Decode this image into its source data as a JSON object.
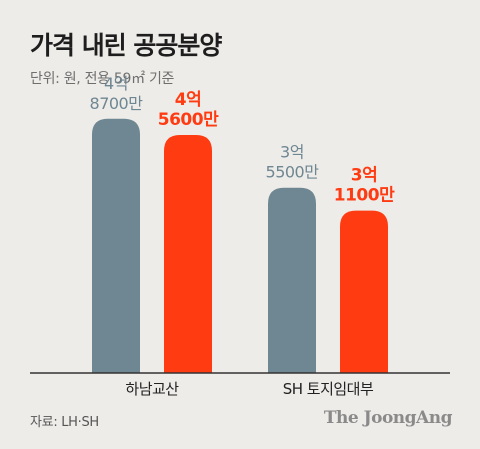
{
  "header": {
    "title": "가격 내린 공공분양",
    "unit_note": "단위: 원, 전용 59㎡ 기준"
  },
  "footer": {
    "source": "자료: LH·SH",
    "brand": "The JoongAng"
  },
  "colors": {
    "before": "#6f8793",
    "after": "#ff3b12",
    "axis": "#333333",
    "category_text": "#222222"
  },
  "chart_data": {
    "type": "bar",
    "title": "가격 내린 공공분양",
    "unit": "원",
    "categories": [
      "하남교산",
      "SH 토지임대부"
    ],
    "series": [
      {
        "values": [
          48700,
          35500
        ],
        "labels": [
          [
            "4억",
            "8700만"
          ],
          [
            "3억",
            "5500만"
          ]
        ]
      },
      {
        "values": [
          45600,
          31100
        ],
        "labels": [
          [
            "4억",
            "5600만"
          ],
          [
            "3억",
            "1100만"
          ]
        ]
      }
    ],
    "value_unit": "만원",
    "ylim": [
      0,
      50000
    ],
    "grid": false,
    "legend": "none"
  }
}
